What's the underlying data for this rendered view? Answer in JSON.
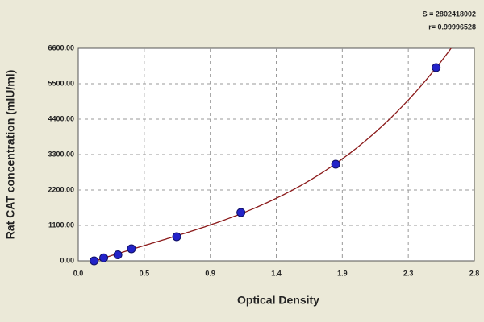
{
  "chart_data": {
    "type": "scatter",
    "annotations": [
      "S = 2802418002",
      "r= 0.99996528"
    ],
    "x_label": "Optical Density",
    "y_label": "Rat CAT concentration (mIU/ml)",
    "x": [
      0.112,
      0.18,
      0.28,
      0.376,
      0.696,
      1.15,
      1.82,
      2.53
    ],
    "series": [
      {
        "color": "#2323c8",
        "values": [
          0,
          93.75,
          187.5,
          375,
          750,
          1500,
          3000,
          6000
        ]
      }
    ],
    "fit_color": "#8b1a1a",
    "xlim": [
      0,
      2.8
    ],
    "xticks": [
      {
        "value": 0,
        "label": "0.0"
      },
      {
        "value": 0.4667,
        "label": "0.5"
      },
      {
        "value": 0.9333,
        "label": "0.9"
      },
      {
        "value": 1.4,
        "label": "1.4"
      },
      {
        "value": 1.8667,
        "label": "1.9"
      },
      {
        "value": 2.3333,
        "label": "2.3"
      },
      {
        "value": 2.8,
        "label": "2.8"
      }
    ],
    "ylim": [
      0,
      6600
    ],
    "yticks": [
      {
        "value": 0,
        "label": "0.00"
      },
      {
        "value": 1100,
        "label": "1100.00"
      },
      {
        "value": 2200,
        "label": "2200.00"
      },
      {
        "value": 3300,
        "label": "3300.00"
      },
      {
        "value": 4400,
        "label": "4400.00"
      },
      {
        "value": 5500,
        "label": "5500.00"
      },
      {
        "value": 6600,
        "label": "6600.00"
      }
    ],
    "grid": true
  }
}
